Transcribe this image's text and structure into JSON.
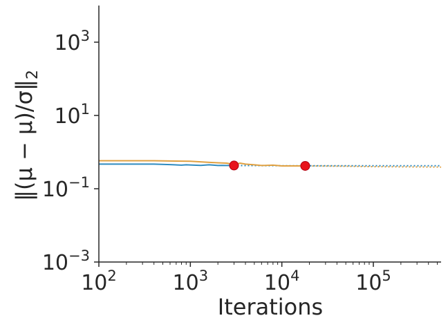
{
  "chart_data": {
    "type": "line",
    "xlabel": "Iterations",
    "ylabel_parts": {
      "left": "‖(μ − ",
      "hat": "μ",
      "right": ")/σ‖",
      "sub": "2"
    },
    "xscale": "log",
    "yscale": "log",
    "xlim": [
      100,
      550000
    ],
    "ylim": [
      0.001,
      10000
    ],
    "grid": false,
    "x_ticks": [
      {
        "base": "10",
        "exp": "2",
        "value": 100
      },
      {
        "base": "10",
        "exp": "3",
        "value": 1000
      },
      {
        "base": "10",
        "exp": "4",
        "value": 10000
      },
      {
        "base": "10",
        "exp": "5",
        "value": 100000
      }
    ],
    "y_ticks": [
      {
        "base": "10",
        "exp": "−3",
        "value": 0.001
      },
      {
        "base": "10",
        "exp": "−1",
        "value": 0.1
      },
      {
        "base": "10",
        "exp": "1",
        "value": 10
      },
      {
        "base": "10",
        "exp": "3",
        "value": 1000
      }
    ],
    "series": [
      {
        "color": "#2e8bc0",
        "x": [
          100,
          200,
          400,
          600,
          800,
          900,
          1100,
          1300,
          1600,
          1800,
          2000,
          2200,
          2500,
          3000
        ],
        "values": [
          0.47,
          0.47,
          0.47,
          0.455,
          0.44,
          0.45,
          0.44,
          0.435,
          0.45,
          0.44,
          0.43,
          0.435,
          0.43,
          0.43
        ],
        "dotted_x": [
          3000,
          10000,
          50000,
          100000,
          550000
        ],
        "dotted_values": [
          0.43,
          0.425,
          0.425,
          0.425,
          0.425
        ],
        "marker": {
          "x": 3000,
          "value": 0.43
        }
      },
      {
        "color": "#e0a040",
        "x": [
          100,
          200,
          400,
          600,
          1000,
          1500,
          2000,
          2500,
          3000,
          3500,
          4000,
          5000,
          6000,
          8000,
          10000,
          15000,
          18000
        ],
        "values": [
          0.58,
          0.58,
          0.58,
          0.57,
          0.56,
          0.53,
          0.51,
          0.5,
          0.46,
          0.5,
          0.47,
          0.45,
          0.43,
          0.44,
          0.42,
          0.42,
          0.42
        ],
        "dotted_x": [
          18000,
          50000,
          100000,
          550000
        ],
        "dotted_values": [
          0.42,
          0.41,
          0.4,
          0.39
        ],
        "marker": {
          "x": 18000,
          "value": 0.42
        }
      }
    ],
    "marker_color": "#e8141c"
  }
}
